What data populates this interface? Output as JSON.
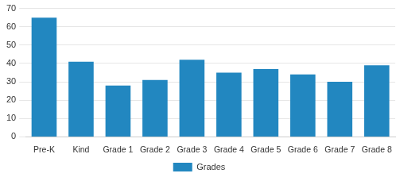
{
  "chart_data": {
    "type": "bar",
    "categories": [
      "Pre-K",
      "Kind",
      "Grade 1",
      "Grade 2",
      "Grade 3",
      "Grade 4",
      "Grade 5",
      "Grade 6",
      "Grade 7",
      "Grade 8"
    ],
    "series": [
      {
        "name": "Grades",
        "color": "#2287c0",
        "values": [
          65,
          41,
          28,
          31,
          42,
          35,
          37,
          34,
          30,
          39
        ]
      }
    ],
    "ylim": [
      0,
      70
    ],
    "yticks": [
      0,
      10,
      20,
      30,
      40,
      50,
      60,
      70
    ],
    "grid": true,
    "legend": "bottom"
  }
}
